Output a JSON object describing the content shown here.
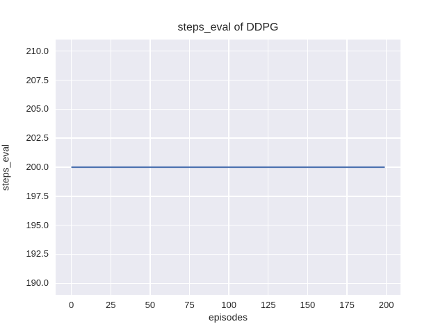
{
  "chart_data": {
    "type": "line",
    "title": "steps_eval of DDPG",
    "xlabel": "episodes",
    "ylabel": "steps_eval",
    "xlim": [
      -10,
      209
    ],
    "ylim": [
      189,
      211
    ],
    "grid": true,
    "legend": "none",
    "x_ticks": [
      {
        "value": 0,
        "label": "0"
      },
      {
        "value": 25,
        "label": "25"
      },
      {
        "value": 50,
        "label": "50"
      },
      {
        "value": 75,
        "label": "75"
      },
      {
        "value": 100,
        "label": "100"
      },
      {
        "value": 125,
        "label": "125"
      },
      {
        "value": 150,
        "label": "150"
      },
      {
        "value": 175,
        "label": "175"
      },
      {
        "value": 200,
        "label": "200"
      }
    ],
    "y_ticks": [
      {
        "value": 190.0,
        "label": "190.0"
      },
      {
        "value": 192.5,
        "label": "192.5"
      },
      {
        "value": 195.0,
        "label": "195.0"
      },
      {
        "value": 197.5,
        "label": "197.5"
      },
      {
        "value": 200.0,
        "label": "200.0"
      },
      {
        "value": 202.5,
        "label": "202.5"
      },
      {
        "value": 205.0,
        "label": "205.0"
      },
      {
        "value": 207.5,
        "label": "207.5"
      },
      {
        "value": 210.0,
        "label": "210.0"
      }
    ],
    "series": [
      {
        "name": "DDPG",
        "color": "#4c72b0",
        "line_width": 2.2,
        "points": [
          [
            0,
            200
          ],
          [
            199,
            200
          ]
        ]
      }
    ],
    "colors": {
      "figure_background": "#ffffff",
      "plot_background": "#eaeaf2",
      "gridline": "#ffffff",
      "text": "#262626"
    }
  }
}
